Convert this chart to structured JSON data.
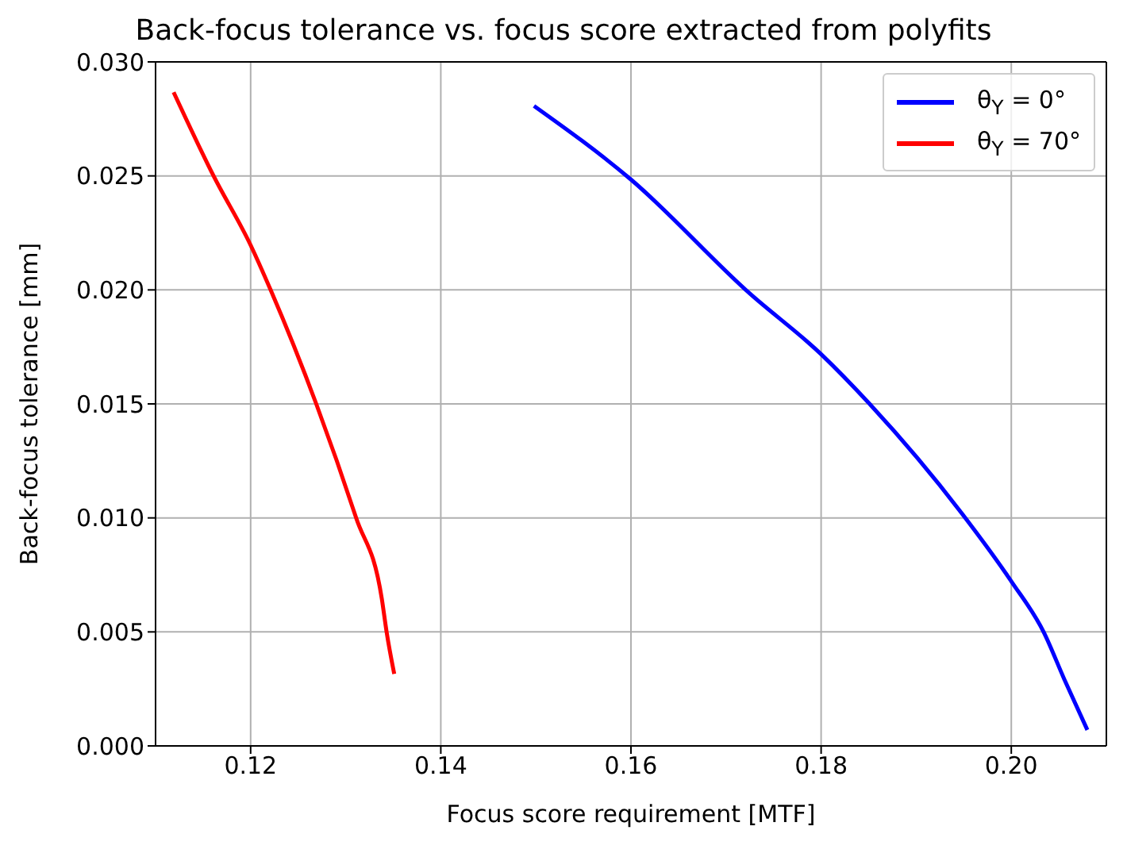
{
  "chart_data": {
    "type": "line",
    "title": "Back-focus tolerance vs. focus score extracted from polyfits",
    "xlabel": "Focus score requirement [MTF]",
    "ylabel": "Back-focus tolerance [mm]",
    "xlim": [
      0.11,
      0.21
    ],
    "xticks": [
      0.12,
      0.14,
      0.16,
      0.18,
      {
        "value": 0.2,
        "label": "0.20"
      }
    ],
    "ylim": [
      0,
      0.03
    ],
    "yticks": [
      {
        "value": 0,
        "label": "0.000"
      },
      0.005,
      {
        "value": 0.01,
        "label": "0.010"
      },
      0.015,
      {
        "value": 0.02,
        "label": "0.020"
      },
      0.025,
      {
        "value": 0.03,
        "label": "0.030"
      }
    ],
    "grid": true,
    "legend": "top right",
    "series": [
      {
        "name": "θ$_{Y}$ = 0°",
        "color": "#0000ff",
        "x": [
          0.1498,
          0.16,
          0.1725,
          0.18,
          0.1851,
          0.1948,
          0.2,
          0.2034,
          0.2056,
          0.208
        ],
        "values": [
          0.02807,
          0.02484,
          0.01984,
          0.01718,
          0.015,
          0.0102,
          0.00722,
          0.005,
          0.0029,
          0.0007
        ]
      },
      {
        "name": "θ$_{Y}$ = 70°",
        "color": "#ff0000",
        "x": [
          0.1119,
          0.1161,
          0.12,
          0.1221,
          0.1269,
          0.1311,
          0.1338,
          0.1343,
          0.1351
        ],
        "values": [
          0.02867,
          0.025,
          0.02196,
          0.02,
          0.015,
          0.01,
          0.00644,
          0.005,
          0.00316
        ]
      }
    ]
  }
}
